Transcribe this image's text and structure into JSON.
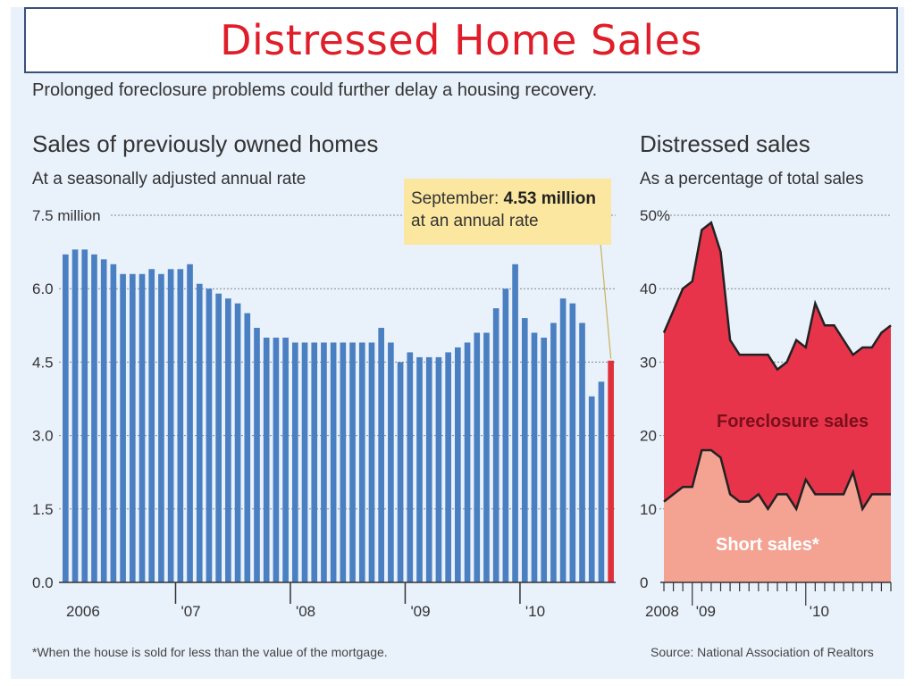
{
  "title": "Distressed Home Sales",
  "subtitle": "Prolonged foreclosure problems could further delay a housing recovery.",
  "footnote": "*When the house is sold for less than the value of the mortgage.",
  "source": "Source: National Association of Realtors",
  "colors": {
    "bar": "#4a7fc1",
    "highlight_bar": "#e0303c",
    "foreclosure": "#e8344a",
    "short": "#f4a393",
    "title": "#e01e2a"
  },
  "chart_data": [
    {
      "type": "bar",
      "title": "Sales of previously owned homes",
      "subtitle": "At a seasonally adjusted annual rate",
      "unit_label": "7.5 million",
      "ylim": [
        0,
        7.5
      ],
      "yticks": [
        "0.0",
        "1.5",
        "3.0",
        "4.5",
        "6.0",
        "7.5 million"
      ],
      "ytick_values": [
        0,
        1.5,
        3.0,
        4.5,
        6.0,
        7.5
      ],
      "xticks": [
        "2006",
        "'07",
        "'08",
        "'09",
        "'10"
      ],
      "xtick_index": [
        0,
        12,
        24,
        36,
        48
      ],
      "annotation": {
        "label": "September:",
        "value": "4.53 million",
        "line2": "at an annual rate"
      },
      "values": [
        6.7,
        6.8,
        6.8,
        6.7,
        6.6,
        6.5,
        6.3,
        6.3,
        6.3,
        6.4,
        6.3,
        6.4,
        6.4,
        6.5,
        6.1,
        6.0,
        5.9,
        5.8,
        5.7,
        5.5,
        5.2,
        5.0,
        5.0,
        5.0,
        4.9,
        4.9,
        4.9,
        4.9,
        4.9,
        4.9,
        4.9,
        4.9,
        4.9,
        5.2,
        4.9,
        4.5,
        4.7,
        4.6,
        4.6,
        4.6,
        4.7,
        4.8,
        4.9,
        5.1,
        5.1,
        5.6,
        6.0,
        6.5,
        5.4,
        5.1,
        5.0,
        5.3,
        5.8,
        5.7,
        5.3,
        3.8,
        4.1,
        4.53
      ]
    },
    {
      "type": "area",
      "title": "Distressed sales",
      "subtitle": "As a percentage of total sales",
      "ylim": [
        0,
        50
      ],
      "yticks": [
        "0",
        "10",
        "20",
        "30",
        "40",
        "50%"
      ],
      "ytick_values": [
        0,
        10,
        20,
        30,
        40,
        50
      ],
      "xticks": [
        "2008",
        "'09",
        "'10"
      ],
      "xtick_index": [
        0,
        3,
        15
      ],
      "series": [
        {
          "name": "Foreclosure sales",
          "values": [
            34,
            37,
            40,
            41,
            48,
            49,
            45,
            33,
            31,
            31,
            31,
            31,
            29,
            30,
            33,
            32,
            38,
            35,
            35,
            33,
            31,
            32,
            32,
            34,
            35
          ]
        },
        {
          "name": "Short sales*",
          "values": [
            11,
            12,
            13,
            13,
            18,
            18,
            17,
            12,
            11,
            11,
            12,
            10,
            12,
            12,
            10,
            14,
            12,
            12,
            12,
            12,
            15,
            10,
            12,
            12,
            12
          ]
        }
      ]
    }
  ]
}
